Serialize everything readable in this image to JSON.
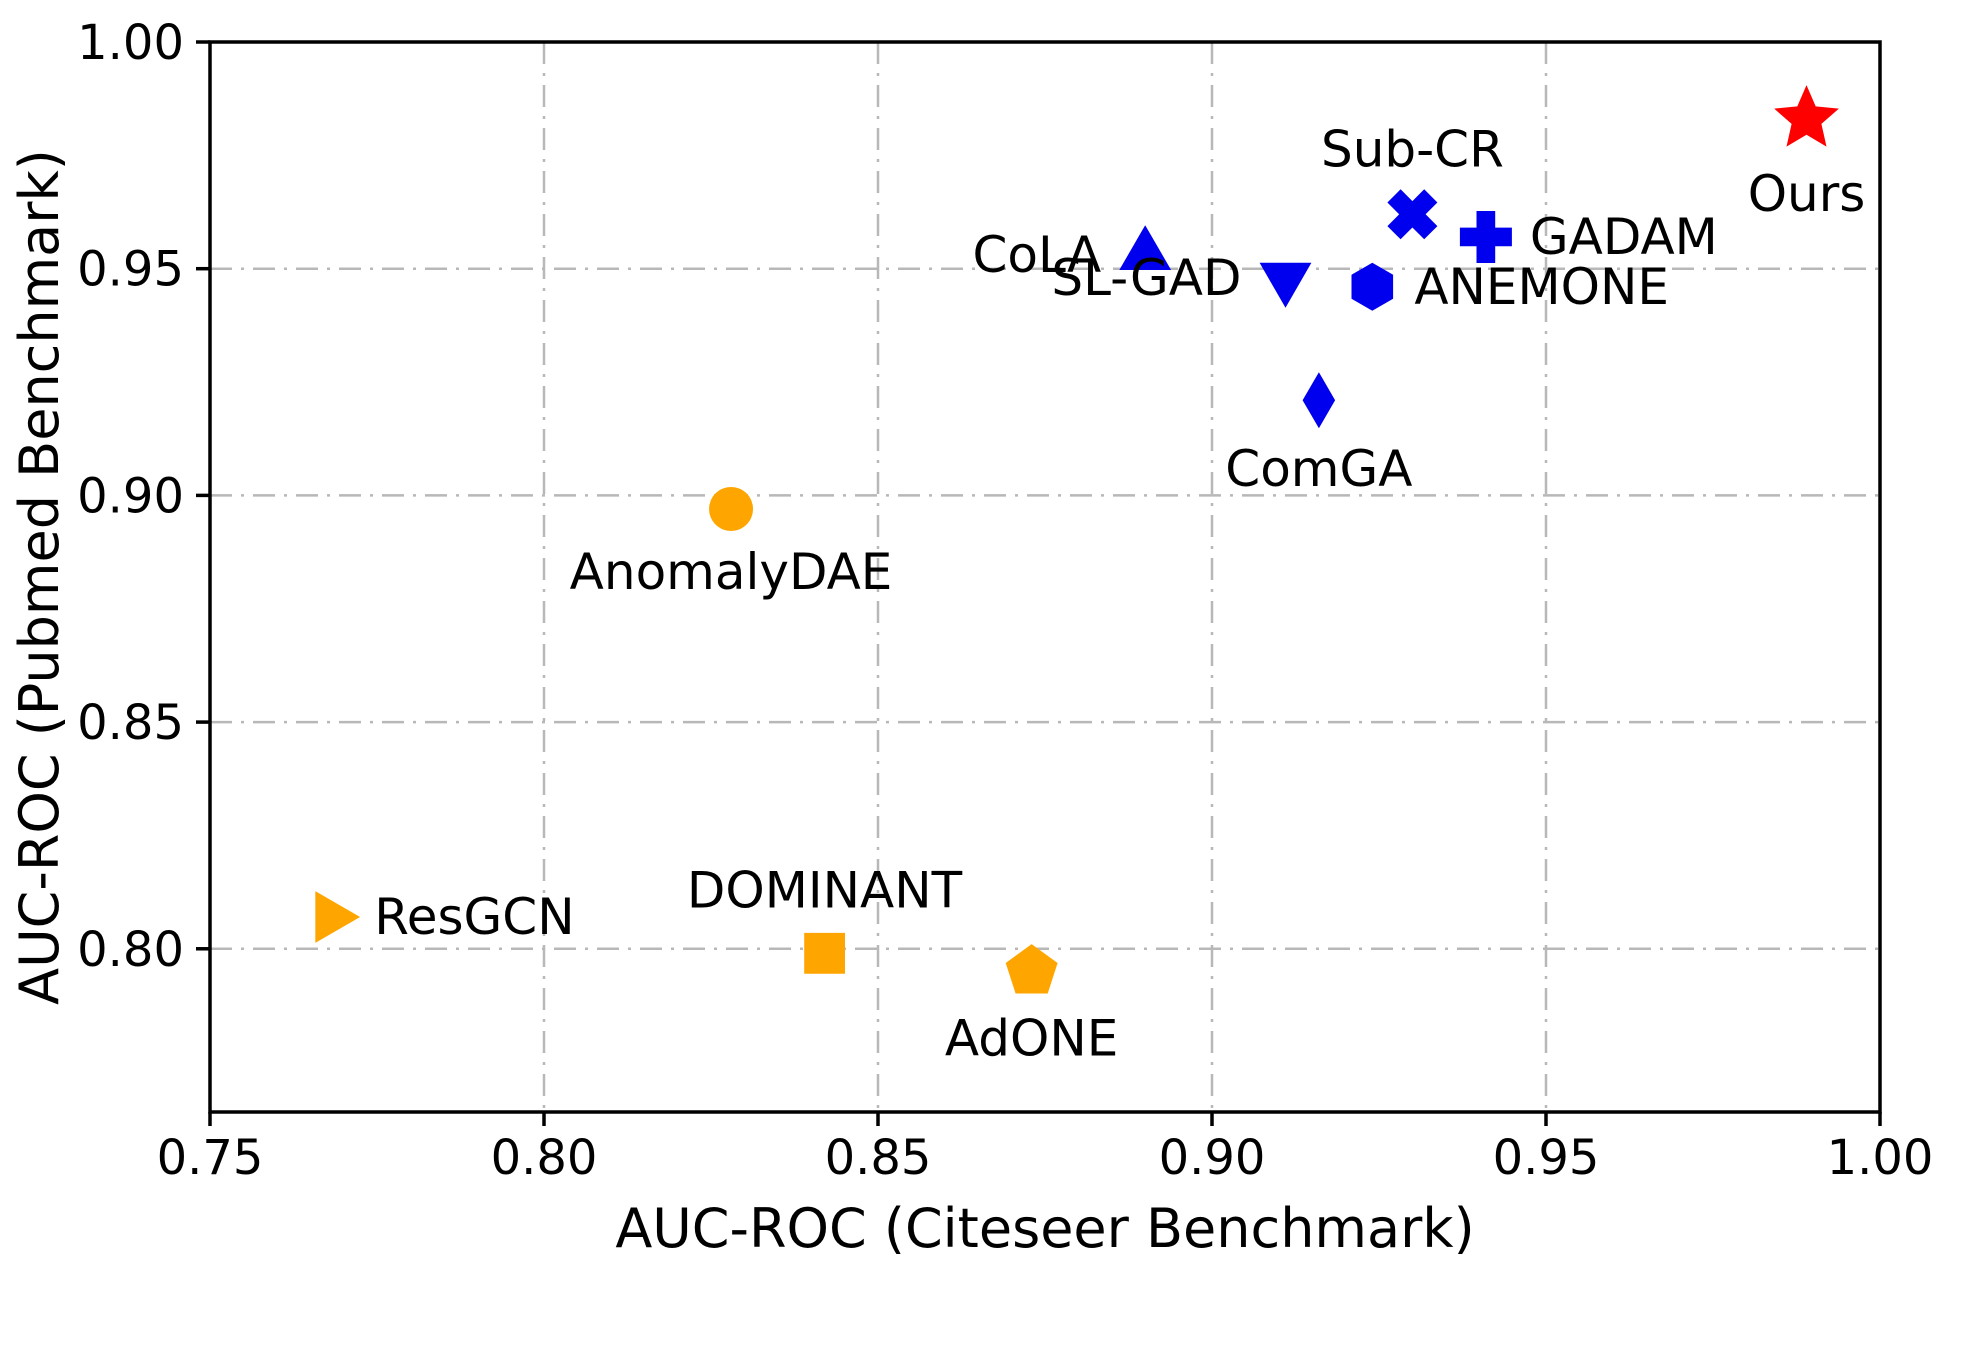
{
  "chart_data": {
    "type": "scatter",
    "title": "",
    "xlabel": "AUC-ROC (Citeseer Benchmark)",
    "ylabel": "AUC-ROC (Pubmed Benchmark)",
    "xlim": [
      0.75,
      1.0
    ],
    "ylim": [
      0.764,
      1.0
    ],
    "xticks": [
      0.75,
      0.8,
      0.85,
      0.9,
      0.95,
      1.0
    ],
    "xtick_labels": [
      "0.75",
      "0.80",
      "0.85",
      "0.90",
      "0.95",
      "1.00"
    ],
    "yticks": [
      0.8,
      0.85,
      0.9,
      0.95,
      1.0
    ],
    "ytick_labels": [
      "0.80",
      "0.85",
      "0.90",
      "0.95",
      "1.00"
    ],
    "grid": true,
    "grid_style": "dash-dot",
    "grid_color": "#b8b8b8",
    "colors": {
      "baseline_group": "#FFA500",
      "contrastive_group": "#0000EE",
      "ours": "#FF0000"
    },
    "points": [
      {
        "label": "ResGCN",
        "x": 0.768,
        "y": 0.807,
        "marker": "triangle-right",
        "color": "#FFA500",
        "size": 26,
        "label_pos": "right"
      },
      {
        "label": "DOMINANT",
        "x": 0.842,
        "y": 0.799,
        "marker": "square",
        "color": "#FFA500",
        "size": 24,
        "label_pos": "above"
      },
      {
        "label": "AdONE",
        "x": 0.873,
        "y": 0.795,
        "marker": "pentagon",
        "color": "#FFA500",
        "size": 26,
        "label_pos": "below"
      },
      {
        "label": "AnomalyDAE",
        "x": 0.828,
        "y": 0.897,
        "marker": "circle",
        "color": "#FFA500",
        "size": 22,
        "label_pos": "below"
      },
      {
        "label": "CoLA",
        "x": 0.89,
        "y": 0.953,
        "marker": "triangle-up",
        "color": "#0000EE",
        "size": 26,
        "label_pos": "left"
      },
      {
        "label": "SL-GAD",
        "x": 0.911,
        "y": 0.948,
        "marker": "triangle-down",
        "color": "#0000EE",
        "size": 26,
        "label_pos": "left"
      },
      {
        "label": "Sub-CR",
        "x": 0.93,
        "y": 0.962,
        "marker": "x",
        "color": "#0000EE",
        "size": 26,
        "label_pos": "above"
      },
      {
        "label": "GADAM",
        "x": 0.941,
        "y": 0.957,
        "marker": "plus",
        "color": "#0000EE",
        "size": 26,
        "label_pos": "right"
      },
      {
        "label": "ANEMONE",
        "x": 0.924,
        "y": 0.946,
        "marker": "hexagon",
        "color": "#0000EE",
        "size": 24,
        "label_pos": "right"
      },
      {
        "label": "ComGA",
        "x": 0.916,
        "y": 0.921,
        "marker": "diamond",
        "color": "#0000EE",
        "size": 28,
        "label_pos": "below"
      },
      {
        "label": "Ours",
        "x": 0.989,
        "y": 0.983,
        "marker": "star",
        "color": "#FF0000",
        "size": 34,
        "label_pos": "below"
      }
    ]
  }
}
